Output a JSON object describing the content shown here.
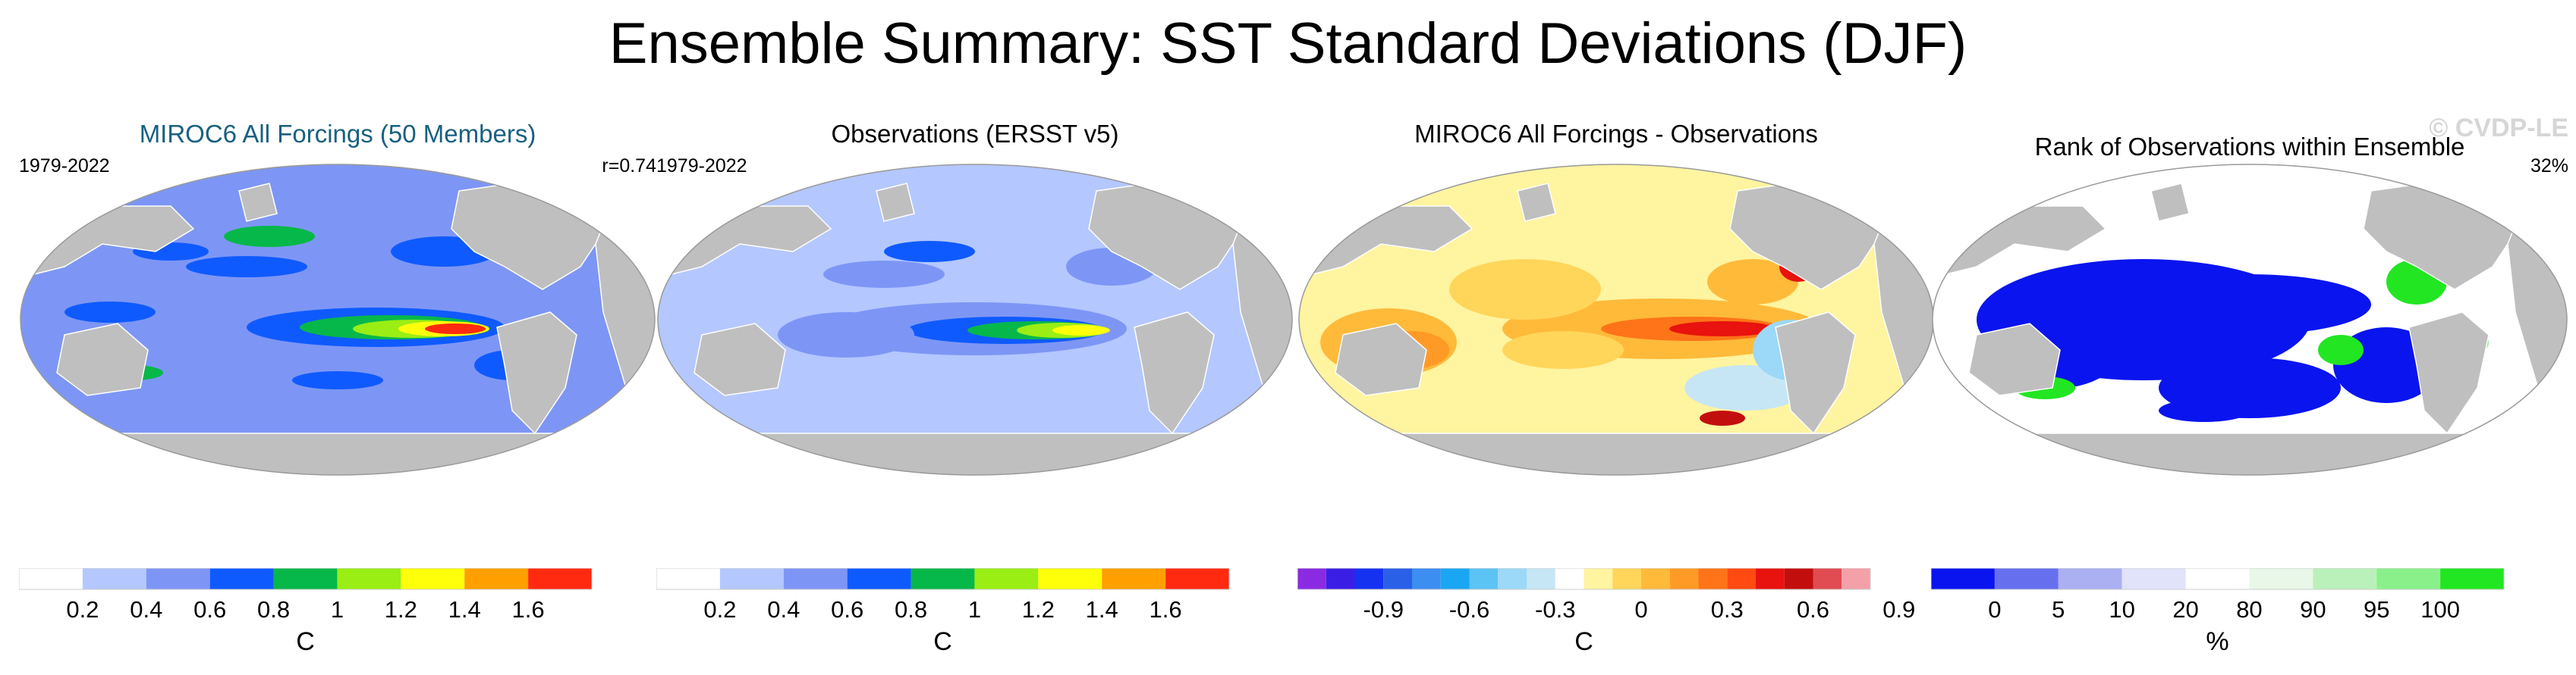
{
  "title": "Ensemble Summary: SST Standard Deviations (DJF)",
  "watermark": "© CVDP-LE",
  "panels": [
    {
      "title": "MIROC6 All Forcings (50 Members)",
      "period": "1979-2022",
      "stat": "r=0.74",
      "unit": "C",
      "map_style": "sd_model",
      "colors": [
        "#ffffff",
        "#b4c7ff",
        "#7d96f5",
        "#0f5aff",
        "#06b84a",
        "#9aee14",
        "#ffff0a",
        "#ff9f00",
        "#ff2a10"
      ],
      "ticks": [
        "0.2",
        "0.4",
        "0.6",
        "0.8",
        "1",
        "1.2",
        "1.4",
        "1.6"
      ]
    },
    {
      "title": "Observations (ERSST v5)",
      "period": "1979-2022",
      "stat": "",
      "unit": "C",
      "map_style": "sd_obs",
      "colors": [
        "#ffffff",
        "#b4c7ff",
        "#7d96f5",
        "#0f5aff",
        "#06b84a",
        "#9aee14",
        "#ffff0a",
        "#ff9f00",
        "#ff2a10"
      ],
      "ticks": [
        "0.2",
        "0.4",
        "0.6",
        "0.8",
        "1",
        "1.2",
        "1.4",
        "1.6"
      ]
    },
    {
      "title": "MIROC6 All Forcings - Observations",
      "period": "",
      "stat": "",
      "unit": "C",
      "map_style": "diff",
      "colors": [
        "#8a2be2",
        "#3a1ee6",
        "#1432f0",
        "#2a5fe8",
        "#3c8ef0",
        "#1aa6f2",
        "#5cc3f5",
        "#9cd8f7",
        "#c6e6f5",
        "#ffffff",
        "#fff4a0",
        "#ffd65a",
        "#ffba3a",
        "#ff9a26",
        "#ff7418",
        "#ff4a12",
        "#e8120e",
        "#c30e0e",
        "#e04c52",
        "#f4a0a8"
      ],
      "ticks": [
        "-0.9",
        "-0.6",
        "-0.3",
        "0",
        "0.3",
        "0.6",
        "0.9"
      ]
    },
    {
      "title": "Rank of Observations within Ensemble",
      "period": "",
      "stat": "32%",
      "unit": "%",
      "map_style": "rank",
      "colors": [
        "#0a14ef",
        "#6670ef",
        "#aab0f2",
        "#e1e3fb",
        "#ffffff",
        "#e8f7e8",
        "#baf1ba",
        "#8af08a",
        "#22e622"
      ],
      "ticks": [
        "0",
        "5",
        "10",
        "20",
        "80",
        "90",
        "95",
        "100"
      ]
    }
  ]
}
